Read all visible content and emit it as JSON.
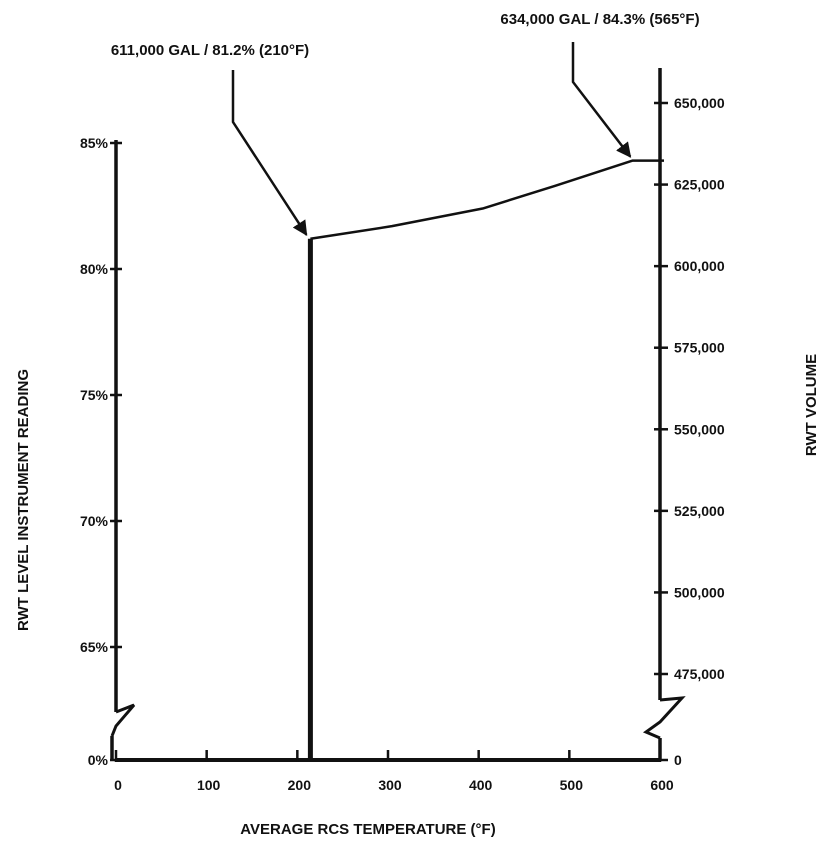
{
  "chart_data": {
    "type": "line",
    "title": "",
    "xlabel": "AVERAGE RCS TEMPERATURE (°F)",
    "ylabel_left": "RWT LEVEL INSTRUMENT READING",
    "ylabel_right": "RWT VOLUME",
    "xlim": [
      0,
      600
    ],
    "x_ticks": [
      "0",
      "100",
      "200",
      "300",
      "400",
      "500",
      "600"
    ],
    "left_axis": {
      "ylim": [
        63,
        85
      ],
      "ticks": [
        "0%",
        "65%",
        "70%",
        "75%",
        "80%",
        "85%"
      ],
      "tick_values": [
        62,
        65,
        70,
        75,
        80,
        85
      ],
      "broken": true
    },
    "right_axis": {
      "ylim": [
        465000,
        650000
      ],
      "ticks": [
        "0",
        "475,000",
        "500,000",
        "525,000",
        "550,000",
        "575,000",
        "600,000",
        "625,000",
        "650,000"
      ],
      "tick_values": [
        464000,
        475000,
        500000,
        525000,
        550000,
        575000,
        600000,
        625000,
        650000
      ],
      "broken": true
    },
    "series": [
      {
        "points_temp_level": [
          [
            210,
            62
          ],
          [
            210,
            81.2
          ],
          [
            300,
            81.7
          ],
          [
            400,
            82.4
          ],
          [
            480,
            83.3
          ],
          [
            565,
            84.3
          ],
          [
            600,
            84.3
          ]
        ]
      }
    ],
    "annotations": [
      {
        "text": "611,000 GAL / 81.2% (210°F)",
        "x": 210,
        "y": 81.2
      },
      {
        "text": "634,000 GAL / 84.3% (565°F)",
        "x": 565,
        "y": 84.3
      }
    ],
    "grid": false,
    "legend": "none"
  }
}
